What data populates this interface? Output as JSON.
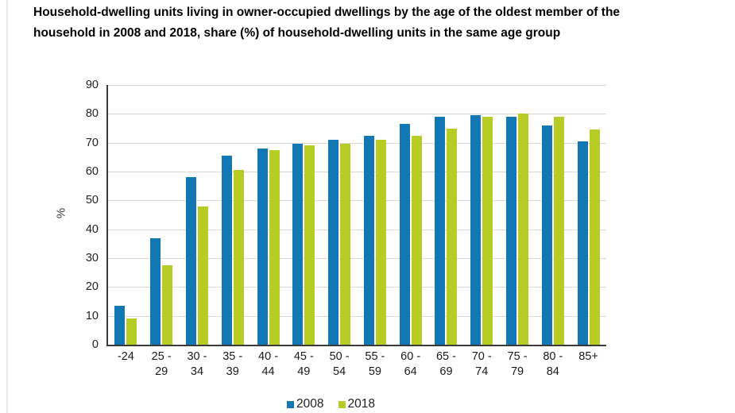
{
  "page": {
    "left_rule_color": "#e7ebef"
  },
  "chart_data": {
    "type": "bar",
    "title": "Household-dwelling units living in owner-occupied dwellings by the age of the oldest member of the household in 2008 and 2018, share (%) of household-dwelling units in the same age group",
    "ylabel": "%",
    "ylim": [
      0,
      90
    ],
    "yticks": [
      0,
      10,
      20,
      30,
      40,
      50,
      60,
      70,
      80,
      90
    ],
    "grid": "horizontal",
    "legend_position": "bottom",
    "categories": [
      "-24",
      "25 -\n29",
      "30 -\n34",
      "35 -\n39",
      "40 -\n44",
      "45 -\n49",
      "50 -\n54",
      "55 -\n59",
      "60 -\n64",
      "65 -\n69",
      "70 -\n74",
      "75 -\n79",
      "80 -\n84",
      "85+"
    ],
    "series": [
      {
        "name": "2008",
        "color": "#1178b4",
        "values": [
          13.5,
          37,
          58,
          65.5,
          68,
          69.5,
          71,
          72.5,
          76.5,
          79,
          79.5,
          79,
          76,
          70.5
        ]
      },
      {
        "name": "2018",
        "color": "#b7cc25",
        "values": [
          9,
          27.5,
          48,
          60.5,
          67.5,
          69,
          69.5,
          71,
          72.5,
          75,
          79,
          80,
          79,
          74.5
        ]
      }
    ],
    "colors": {
      "gridline": "#d9d9d9",
      "axis": "#3a3a3a",
      "tick_text": "#222222"
    }
  }
}
